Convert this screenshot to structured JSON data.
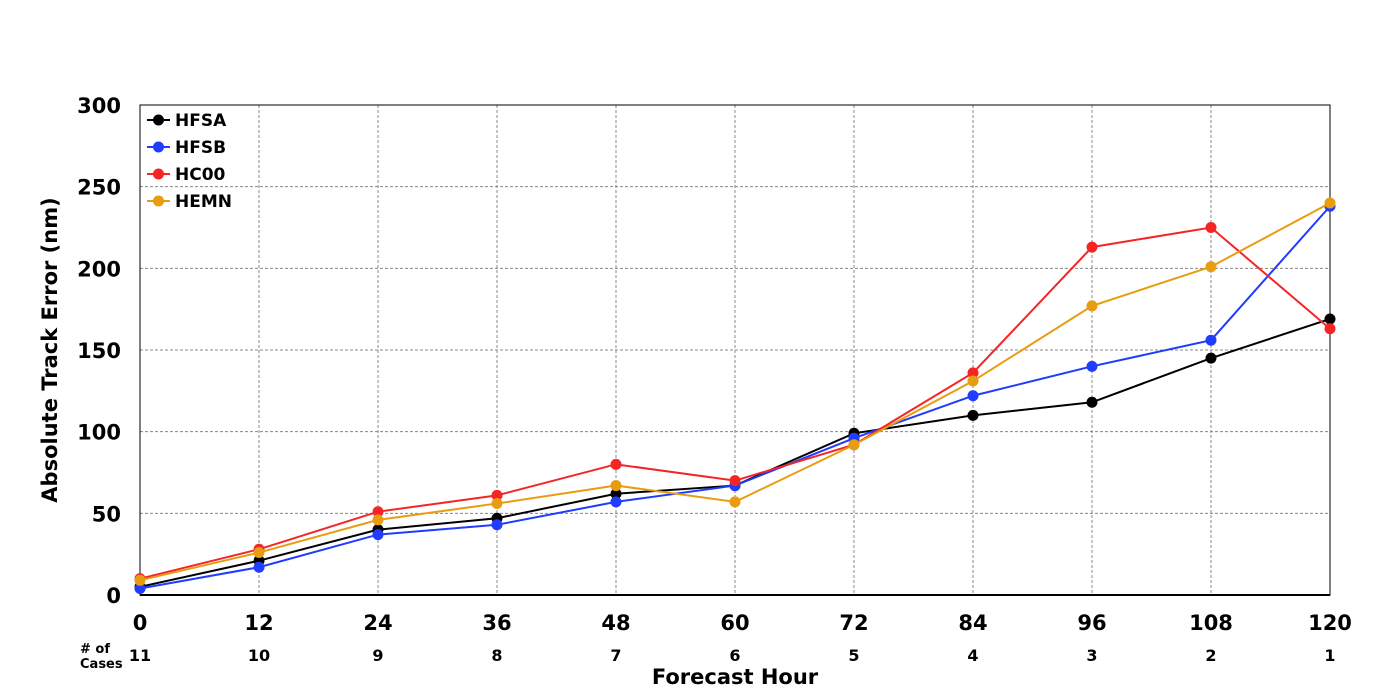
{
  "chart_data": {
    "type": "line",
    "title": "",
    "xlabel": "Forecast Hour",
    "ylabel": "Absolute Track Error (nm)",
    "x": [
      0,
      12,
      24,
      36,
      48,
      60,
      72,
      84,
      96,
      108,
      120
    ],
    "xlim": [
      0,
      120
    ],
    "ylim": [
      0,
      300
    ],
    "yticks": [
      0,
      50,
      100,
      150,
      200,
      250,
      300
    ],
    "grid": true,
    "legend_position": "top-left",
    "series": [
      {
        "name": "HFSA",
        "color": "#000000",
        "values": [
          5,
          21,
          40,
          47,
          62,
          67,
          99,
          110,
          118,
          145,
          169
        ]
      },
      {
        "name": "HFSB",
        "color": "#1f3cff",
        "values": [
          4,
          17,
          37,
          43,
          57,
          67,
          96,
          122,
          140,
          156,
          238
        ]
      },
      {
        "name": "HC00",
        "color": "#f52525",
        "values": [
          10,
          28,
          51,
          61,
          80,
          70,
          92,
          136,
          213,
          225,
          163
        ]
      },
      {
        "name": "HEMN",
        "color": "#e89c10",
        "values": [
          9,
          26,
          46,
          56,
          67,
          57,
          92,
          131,
          177,
          201,
          240
        ]
      }
    ],
    "cases": {
      "label_line1": "# of",
      "label_line2": "Cases",
      "values": [
        "11",
        "10",
        "9",
        "8",
        "7",
        "6",
        "5",
        "4",
        "3",
        "2",
        "1"
      ]
    }
  }
}
